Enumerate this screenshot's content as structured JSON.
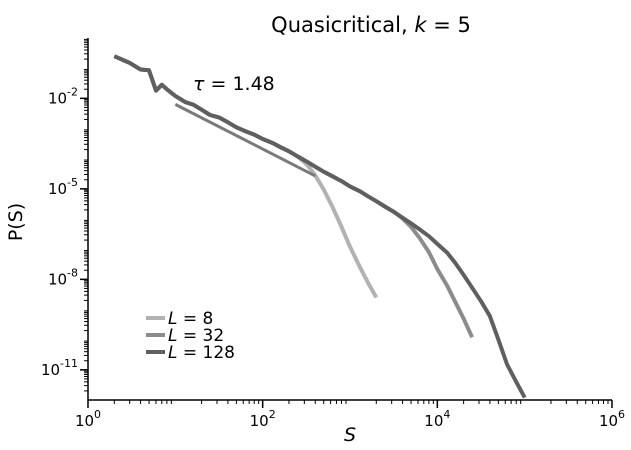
{
  "chart_data": {
    "type": "line",
    "title": {
      "prefix": "Quasicritical, ",
      "var": "k",
      "suffix": " = 5"
    },
    "xlabel": "S",
    "ylabel": "P(S)",
    "xscale": "log",
    "yscale": "log",
    "xlim": [
      1,
      1000000
    ],
    "ylim": [
      1e-12,
      1
    ],
    "x_ticks": [
      {
        "base": "10",
        "exp": "0",
        "value": 1
      },
      {
        "base": "10",
        "exp": "2",
        "value": 100
      },
      {
        "base": "10",
        "exp": "4",
        "value": 10000
      },
      {
        "base": "10",
        "exp": "6",
        "value": 1000000
      }
    ],
    "y_ticks": [
      {
        "base": "10",
        "exp": "-11",
        "value": 1e-11
      },
      {
        "base": "10",
        "exp": "-8",
        "value": 1e-08
      },
      {
        "base": "10",
        "exp": "-5",
        "value": 1e-05
      },
      {
        "base": "10",
        "exp": "-2",
        "value": 0.01
      }
    ],
    "grid": false,
    "legend_position": "bottom-left",
    "series": [
      {
        "name": "8",
        "label_var": "L",
        "color": "#b2b2b2",
        "x": [
          2,
          3,
          4,
          5,
          6,
          7,
          8,
          10,
          13,
          16,
          20,
          25,
          32,
          40,
          50,
          63,
          80,
          100,
          130,
          160,
          200,
          250,
          320,
          400,
          500,
          630,
          800,
          1000,
          1300,
          1600,
          2000
        ],
        "y": [
          0.25,
          0.15,
          0.09,
          0.085,
          0.018,
          0.028,
          0.02,
          0.012,
          0.0075,
          0.0062,
          0.0042,
          0.0028,
          0.0023,
          0.0016,
          0.0011,
          0.00082,
          0.00063,
          0.00045,
          0.00033,
          0.00024,
          0.000175,
          0.00012,
          6.5e-05,
          2.8e-05,
          9.5e-06,
          2.5e-06,
          5.5e-07,
          1.2e-07,
          2.5e-08,
          8e-09,
          2.5e-09
        ]
      },
      {
        "name": "32",
        "label_var": "L",
        "color": "#8c8c8c",
        "x": [
          2,
          3,
          4,
          5,
          6,
          7,
          8,
          10,
          13,
          16,
          20,
          25,
          32,
          40,
          50,
          63,
          80,
          100,
          130,
          160,
          200,
          250,
          320,
          400,
          500,
          630,
          800,
          1000,
          1300,
          1600,
          2000,
          2500,
          3200,
          4000,
          5000,
          6300,
          8000,
          10000,
          13000,
          16000,
          20000,
          25000
        ],
        "y": [
          0.25,
          0.15,
          0.09,
          0.085,
          0.018,
          0.028,
          0.02,
          0.012,
          0.0075,
          0.0062,
          0.0042,
          0.0028,
          0.0023,
          0.0016,
          0.0011,
          0.00082,
          0.00063,
          0.00045,
          0.00033,
          0.00024,
          0.000175,
          0.00012,
          8e-05,
          5.4e-05,
          3.7e-05,
          2.6e-05,
          1.8e-05,
          1.2e-05,
          8.3e-06,
          5.7e-06,
          3.9e-06,
          2.6e-06,
          1.7e-06,
          1.05e-06,
          5.5e-07,
          2.3e-07,
          8e-08,
          2.2e-08,
          6e-09,
          1.8e-09,
          5e-10,
          1.2e-10
        ]
      },
      {
        "name": "128",
        "label_var": "L",
        "color": "#5f5f5f",
        "x": [
          2,
          3,
          4,
          5,
          6,
          7,
          8,
          10,
          13,
          16,
          20,
          25,
          32,
          40,
          50,
          63,
          80,
          100,
          130,
          160,
          200,
          250,
          320,
          400,
          500,
          630,
          800,
          1000,
          1300,
          1600,
          2000,
          2500,
          3200,
          4000,
          5000,
          6300,
          8000,
          10000,
          13000,
          16000,
          20000,
          25000,
          32000,
          40000,
          50000,
          63000,
          80000,
          100000
        ],
        "y": [
          0.25,
          0.15,
          0.09,
          0.085,
          0.018,
          0.028,
          0.02,
          0.012,
          0.0075,
          0.0062,
          0.0042,
          0.0028,
          0.0023,
          0.0016,
          0.0011,
          0.00082,
          0.00063,
          0.00045,
          0.00033,
          0.00024,
          0.000175,
          0.00012,
          8e-05,
          5.4e-05,
          3.7e-05,
          2.6e-05,
          1.8e-05,
          1.2e-05,
          8.3e-06,
          5.7e-06,
          3.9e-06,
          2.6e-06,
          1.7e-06,
          1.1e-06,
          7.2e-07,
          4.5e-07,
          2.7e-07,
          1.5e-07,
          7.5e-08,
          3.5e-08,
          1.4e-08,
          5.3e-09,
          1.8e-09,
          6e-10,
          1e-10,
          1.5e-11,
          4e-12,
          1.2e-12
        ]
      }
    ],
    "reference_line": {
      "label": {
        "var": "τ",
        "value": " = 1.48"
      },
      "color": "#7a7a7a",
      "x": [
        10,
        400
      ],
      "y": [
        0.0063,
        2.68e-05
      ]
    }
  }
}
